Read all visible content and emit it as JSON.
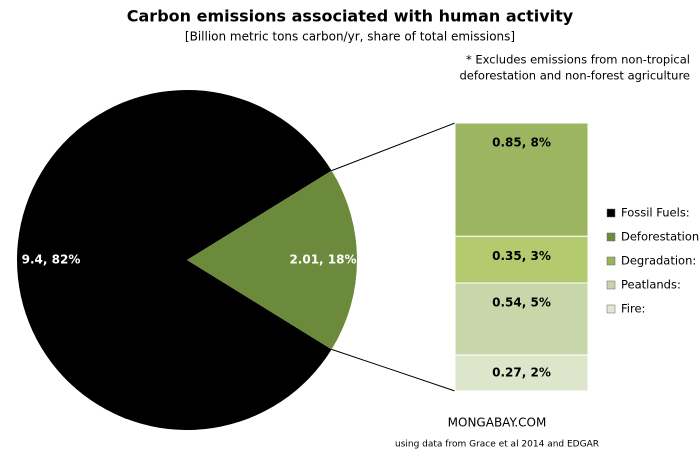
{
  "chart_data": {
    "type": "pie-of-bar",
    "title": "Carbon emissions associated with human activity",
    "subtitle": "[Billion metric tons carbon/yr, share of total emissions]",
    "note": [
      "* Excludes emissions from non-tropical",
      "deforestation and non-forest agriculture"
    ],
    "credit": "MONGABAY.COM",
    "source": "using data from Grace et al 2014 and EDGAR",
    "pie": {
      "values": [
        9.4,
        2.01
      ],
      "value_labels": [
        "9.4, 82%",
        "2.01, 18%"
      ],
      "colors": [
        "#000000",
        "#6b8a3c"
      ]
    },
    "bar": {
      "values": [
        0.85,
        0.35,
        0.54,
        0.27
      ],
      "value_labels": [
        "0.85, 8%",
        "0.35, 3%",
        "0.54, 5%",
        "0.27, 2%"
      ],
      "colors": [
        "#9cb560",
        "#b3ca6e",
        "#c8d7a9",
        "#dde6cb"
      ]
    },
    "categories": [
      "Fossil Fuels:",
      "Deforestation",
      "Degradation:",
      "Peatlands:",
      "Fire:"
    ],
    "colors": [
      "#000000",
      "#6e8b3d",
      "#9ab25a",
      "#c6d6a6",
      "#e0e8cf"
    ]
  }
}
